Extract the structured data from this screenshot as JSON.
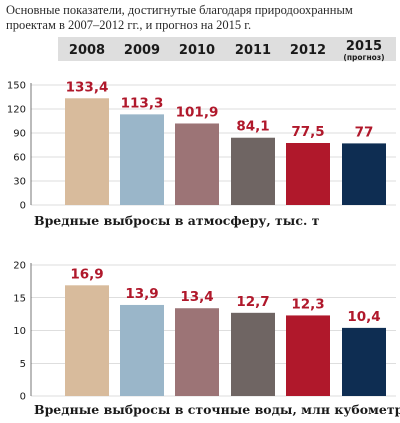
{
  "intro_text": "Основные показатели, достигнутые благодаря природоохранным проектам в 2007–2012 гг., и прогноз на 2015 г.",
  "colors": {
    "bars": [
      "#d8bb9c",
      "#9ab6c9",
      "#9c7476",
      "#6f6563",
      "#b0182b",
      "#0e2d52"
    ],
    "label": "#b0182b",
    "band": "#dedede"
  },
  "chart_data": [
    {
      "type": "bar",
      "title": "Вредные выбросы в атмосферу, тыс. т",
      "categories": [
        "2008",
        "2009",
        "2010",
        "2011",
        "2012",
        "2015"
      ],
      "category_notes": [
        "",
        "",
        "",
        "",
        "",
        "(прогноз)"
      ],
      "values": [
        133.4,
        113.3,
        101.9,
        84.1,
        77.5,
        77
      ],
      "labels": [
        "133,4",
        "113,3",
        "101,9",
        "84,1",
        "77,5",
        "77"
      ],
      "ylim": [
        0,
        150
      ],
      "yticks": [
        0,
        30,
        60,
        90,
        120,
        150
      ],
      "grid": true
    },
    {
      "type": "bar",
      "title": "Вредные выбросы в сточные воды, млн кубометров",
      "categories": [
        "2008",
        "2009",
        "2010",
        "2011",
        "2012",
        "2015"
      ],
      "values": [
        16.9,
        13.9,
        13.4,
        12.7,
        12.3,
        10.4
      ],
      "labels": [
        "16,9",
        "13,9",
        "13,4",
        "12,7",
        "12,3",
        "10,4"
      ],
      "ylim": [
        0,
        20
      ],
      "yticks": [
        0,
        5,
        10,
        15,
        20
      ],
      "grid": true
    }
  ]
}
